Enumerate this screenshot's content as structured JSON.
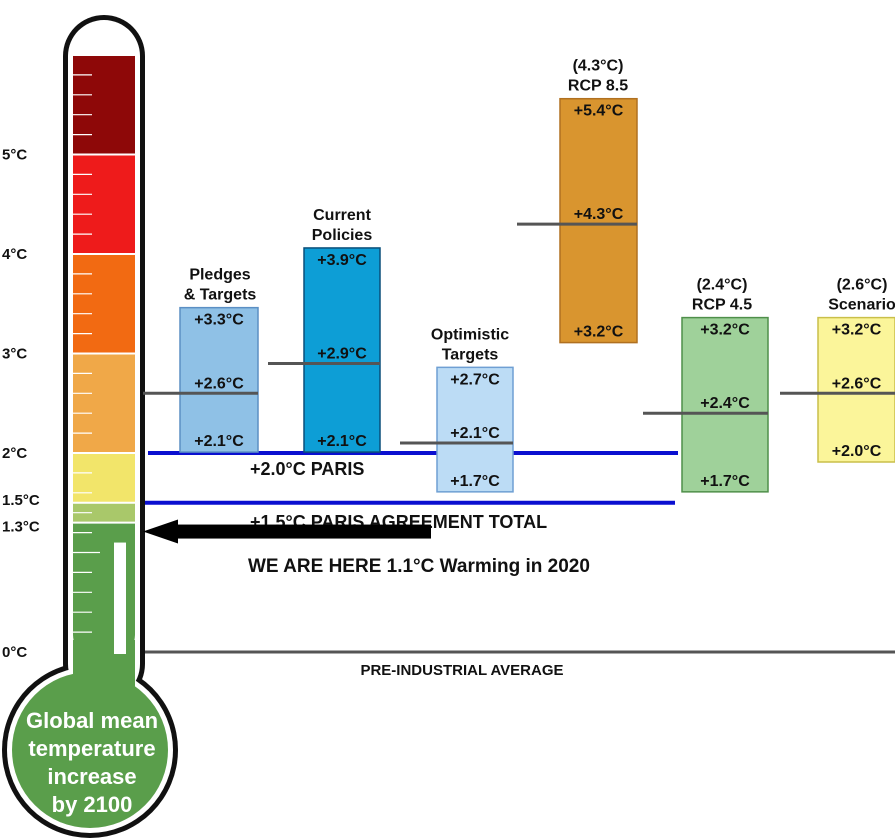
{
  "chart_data": {
    "type": "bar",
    "ylabel": "Global mean temperature increase by 2100",
    "bulb_lines": [
      "Global mean",
      "temperature",
      "increase",
      "by 2100"
    ],
    "axis_ticks": [
      {
        "value": 0,
        "label": "0°C"
      },
      {
        "value": 1.3,
        "label": "1.3°C"
      },
      {
        "value": 1.5,
        "label": "1.5°C"
      },
      {
        "value": 2,
        "label": "2°C"
      },
      {
        "value": 3,
        "label": "3°C"
      },
      {
        "value": 4,
        "label": "4°C"
      },
      {
        "value": 5,
        "label": "5°C"
      }
    ],
    "thermometer_bands": [
      {
        "from": 0,
        "to": 1.3,
        "color": "#5a9e4b"
      },
      {
        "from": 1.3,
        "to": 1.5,
        "color": "#a9c86a"
      },
      {
        "from": 1.5,
        "to": 2.0,
        "color": "#f2e56a"
      },
      {
        "from": 2.0,
        "to": 3.0,
        "color": "#f0a848"
      },
      {
        "from": 3.0,
        "to": 4.0,
        "color": "#f26a12"
      },
      {
        "from": 4.0,
        "to": 5.0,
        "color": "#ee1b1b"
      },
      {
        "from": 5.0,
        "to": 6.0,
        "color": "#8e0808"
      }
    ],
    "scenarios": [
      {
        "title": [
          "Pledges",
          "& Targets"
        ],
        "low": 2.1,
        "mid": 2.6,
        "high": 3.3,
        "low_label": "+2.1°C",
        "mid_label": "+2.6°C",
        "high_label": "+3.3°C",
        "fill": "#8fc1e6",
        "stroke": "#5b8fc4"
      },
      {
        "title": [
          "Current",
          "Policies"
        ],
        "low": 2.1,
        "mid": 2.9,
        "high": 3.9,
        "low_label": "+2.1°C",
        "mid_label": "+2.9°C",
        "high_label": "+3.9°C",
        "fill": "#0d9ed6",
        "stroke": "#0a4f7a"
      },
      {
        "title": [
          "Optimistic",
          "Targets"
        ],
        "low": 1.7,
        "mid": 2.1,
        "high": 2.7,
        "low_label": "+1.7°C",
        "mid_label": "+2.1°C",
        "high_label": "+2.7°C",
        "fill": "#bcdcf5",
        "stroke": "#6f9fd3"
      },
      {
        "title": [
          "(4.3°C)",
          "RCP 8.5"
        ],
        "low": 3.2,
        "mid": 4.3,
        "high": 5.4,
        "low_label": "+3.2°C",
        "mid_label": "+4.3°C",
        "high_label": "+5.4°C",
        "fill": "#d9952f",
        "stroke": "#b07020"
      },
      {
        "title": [
          "(2.4°C)",
          "RCP 4.5"
        ],
        "low": 1.7,
        "mid": 2.4,
        "high": 3.2,
        "low_label": "+1.7°C",
        "mid_label": "+2.4°C",
        "high_label": "+3.2°C",
        "fill": "#9fd19a",
        "stroke": "#4f8f4a"
      },
      {
        "title": [
          "(2.6°C)",
          "Scenario"
        ],
        "low": 2.0,
        "mid": 2.6,
        "high": 3.2,
        "low_label": "+2.0°C",
        "mid_label": "+2.6°C",
        "high_label": "+3.2°C",
        "fill": "#fbf59a",
        "stroke": "#c9bf4a"
      }
    ],
    "reference_lines": [
      {
        "value": 2.0,
        "label": "+2.0°C PARIS",
        "color": "#0a0fd0"
      },
      {
        "value": 1.5,
        "label": "+1.5°C PARIS AGREEMENT TOTAL",
        "color": "#0a0fd0"
      }
    ],
    "current_marker": {
      "value": 1.1,
      "label": "WE ARE HERE  1.1°C Warming in 2020"
    },
    "baseline": {
      "value": 0,
      "label": "PRE-INDUSTRIAL AVERAGE"
    }
  }
}
